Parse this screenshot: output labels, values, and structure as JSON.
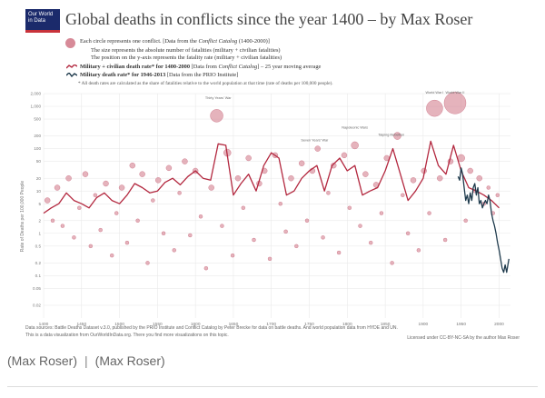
{
  "logo": {
    "line1": "Our World",
    "line2": "in Data"
  },
  "legend": {
    "circle_text": "Each circle represents one conflict. [Data from the",
    "circle_text_italic": "Conflict Catalog",
    "circle_text_end": "(1400-2000)]",
    "size_text": "The size represents the absolute number of fatalities (military + civilian fatalities)",
    "position_text": "The position on the y-axis represents the fatality rate (military + civilian fatalities)",
    "line1_bold": "Military + civilian death rate* for 1400-2000",
    "line1_rest": "[Data from",
    "line1_italic": "Conflict Catalog",
    "line1_end": "] – 25 year moving average",
    "line2_bold": "Military death rate* for 1946-2013",
    "line2_rest": "[Data from the PRIO Institute]",
    "note": "* All death rates are calculated as the share of fatalities relative to the world population at that time (rate of deaths per 100,000 people)."
  },
  "sources": {
    "line1": "Data sources: Battle Deaths Dataset v.3.0, published by the PRIO Institute and Conflict Catalog by Peter Brecke for data on battle deaths. And world population data from HYDE and UN.",
    "line2": "This is a data visualization from OurWorldInData.org. There you find more visualizations on this topic.",
    "license": "Licensed under CC-BY-NC-SA by the author Max Roser"
  },
  "caption": {
    "left": "(Max Roser)",
    "separator": "|",
    "right": "(Max Roser)"
  },
  "colors": {
    "circle": "#d78a98",
    "circle_stroke": "#c86a7e",
    "conflict_line": "#b3283f",
    "prio_line": "#1f3b4d",
    "grid": "#e6e6e6",
    "axis_text": "#777777",
    "logo_bg": "#1b2a6b",
    "logo_accent": "#c8323b"
  },
  "chart_data": {
    "type": "scatter",
    "title": "Global deaths in conflicts since the year 1400 – by Max Roser",
    "ylabel": "Rate of Deaths per 100,000 People",
    "xlim": [
      1400,
      2015
    ],
    "ylim": [
      0.01,
      2000
    ],
    "yscale": "log",
    "xticks": [
      1400,
      1450,
      1500,
      1550,
      1600,
      1650,
      1700,
      1750,
      1800,
      1850,
      1900,
      1950,
      2000
    ],
    "yticks": [
      {
        "value": 2000,
        "label": "2,000"
      },
      {
        "value": 1000,
        "label": "1,000"
      },
      {
        "value": 500,
        "label": "500"
      },
      {
        "value": 200,
        "label": "200"
      },
      {
        "value": 100,
        "label": "100"
      },
      {
        "value": 50,
        "label": "50"
      },
      {
        "value": 20,
        "label": "20"
      },
      {
        "value": 10,
        "label": "10"
      },
      {
        "value": 5,
        "label": "5"
      },
      {
        "value": 2,
        "label": "2"
      },
      {
        "value": 1,
        "label": "1"
      },
      {
        "value": 0.5,
        "label": "0.5"
      },
      {
        "value": 0.2,
        "label": "0.2"
      },
      {
        "value": 0.1,
        "label": "0.1"
      },
      {
        "value": 0.05,
        "label": "0.05"
      },
      {
        "value": 0.02,
        "label": "0.02"
      }
    ],
    "grid": true,
    "series": [
      {
        "name": "Military + civilian death rate* for 1400-2000",
        "type": "line",
        "points": [
          [
            1400,
            3
          ],
          [
            1410,
            4
          ],
          [
            1420,
            5
          ],
          [
            1430,
            9
          ],
          [
            1440,
            6
          ],
          [
            1450,
            5
          ],
          [
            1460,
            4
          ],
          [
            1470,
            7
          ],
          [
            1480,
            9
          ],
          [
            1490,
            6
          ],
          [
            1500,
            5
          ],
          [
            1510,
            8
          ],
          [
            1520,
            15
          ],
          [
            1530,
            12
          ],
          [
            1540,
            9
          ],
          [
            1550,
            10
          ],
          [
            1560,
            16
          ],
          [
            1570,
            20
          ],
          [
            1580,
            14
          ],
          [
            1590,
            22
          ],
          [
            1600,
            30
          ],
          [
            1610,
            20
          ],
          [
            1620,
            18
          ],
          [
            1630,
            130
          ],
          [
            1640,
            120
          ],
          [
            1650,
            8
          ],
          [
            1660,
            15
          ],
          [
            1670,
            25
          ],
          [
            1680,
            10
          ],
          [
            1690,
            40
          ],
          [
            1700,
            80
          ],
          [
            1710,
            60
          ],
          [
            1720,
            8
          ],
          [
            1730,
            10
          ],
          [
            1740,
            20
          ],
          [
            1750,
            30
          ],
          [
            1760,
            40
          ],
          [
            1770,
            10
          ],
          [
            1780,
            40
          ],
          [
            1790,
            60
          ],
          [
            1800,
            30
          ],
          [
            1810,
            40
          ],
          [
            1820,
            8
          ],
          [
            1830,
            10
          ],
          [
            1840,
            12
          ],
          [
            1850,
            30
          ],
          [
            1860,
            100
          ],
          [
            1870,
            25
          ],
          [
            1880,
            6
          ],
          [
            1890,
            10
          ],
          [
            1900,
            20
          ],
          [
            1910,
            150
          ],
          [
            1920,
            40
          ],
          [
            1930,
            25
          ],
          [
            1940,
            120
          ],
          [
            1950,
            30
          ],
          [
            1960,
            12
          ],
          [
            1970,
            10
          ],
          [
            1980,
            8
          ],
          [
            1990,
            6
          ],
          [
            2000,
            4
          ]
        ]
      },
      {
        "name": "Military death rate* for 1946-2013",
        "type": "line",
        "points": [
          [
            1946,
            22
          ],
          [
            1948,
            18
          ],
          [
            1950,
            35
          ],
          [
            1952,
            25
          ],
          [
            1954,
            12
          ],
          [
            1956,
            6
          ],
          [
            1958,
            8
          ],
          [
            1960,
            5
          ],
          [
            1962,
            9
          ],
          [
            1964,
            6
          ],
          [
            1966,
            12
          ],
          [
            1968,
            15
          ],
          [
            1970,
            8
          ],
          [
            1972,
            12
          ],
          [
            1974,
            5
          ],
          [
            1976,
            6
          ],
          [
            1978,
            4
          ],
          [
            1980,
            5
          ],
          [
            1982,
            6
          ],
          [
            1984,
            5
          ],
          [
            1986,
            8
          ],
          [
            1988,
            6
          ],
          [
            1990,
            3
          ],
          [
            1992,
            2
          ],
          [
            1994,
            1.5
          ],
          [
            1996,
            1
          ],
          [
            1998,
            0.6
          ],
          [
            2000,
            0.4
          ],
          [
            2002,
            0.25
          ],
          [
            2004,
            0.15
          ],
          [
            2006,
            0.12
          ],
          [
            2008,
            0.18
          ],
          [
            2010,
            0.12
          ],
          [
            2012,
            0.2
          ],
          [
            2013,
            0.25
          ]
        ]
      },
      {
        "name": "Conflicts",
        "type": "bubbles",
        "points": [
          [
            1405,
            6,
            3
          ],
          [
            1412,
            2,
            2
          ],
          [
            1418,
            12,
            3
          ],
          [
            1425,
            1.5,
            2
          ],
          [
            1433,
            20,
            3
          ],
          [
            1440,
            0.8,
            2
          ],
          [
            1447,
            4,
            2
          ],
          [
            1455,
            25,
            3
          ],
          [
            1462,
            0.5,
            2
          ],
          [
            1468,
            8,
            2
          ],
          [
            1475,
            1.2,
            2
          ],
          [
            1482,
            15,
            3
          ],
          [
            1490,
            0.3,
            2
          ],
          [
            1496,
            3,
            2
          ],
          [
            1503,
            12,
            3
          ],
          [
            1510,
            0.6,
            2
          ],
          [
            1517,
            40,
            3
          ],
          [
            1524,
            2,
            2
          ],
          [
            1530,
            25,
            3
          ],
          [
            1537,
            0.2,
            2
          ],
          [
            1544,
            6,
            2
          ],
          [
            1551,
            18,
            3
          ],
          [
            1558,
            1,
            2
          ],
          [
            1565,
            35,
            3
          ],
          [
            1572,
            0.4,
            2
          ],
          [
            1579,
            9,
            2
          ],
          [
            1586,
            50,
            3
          ],
          [
            1593,
            0.9,
            2
          ],
          [
            1600,
            30,
            3
          ],
          [
            1607,
            2.5,
            2
          ],
          [
            1614,
            0.15,
            2
          ],
          [
            1621,
            12,
            3
          ],
          [
            1628,
            600,
            7
          ],
          [
            1635,
            1.5,
            2
          ],
          [
            1642,
            80,
            4
          ],
          [
            1649,
            0.3,
            2
          ],
          [
            1656,
            20,
            3
          ],
          [
            1663,
            4,
            2
          ],
          [
            1670,
            60,
            3
          ],
          [
            1677,
            0.7,
            2
          ],
          [
            1684,
            15,
            3
          ],
          [
            1691,
            30,
            3
          ],
          [
            1698,
            0.25,
            2
          ],
          [
            1705,
            70,
            3
          ],
          [
            1712,
            5,
            2
          ],
          [
            1719,
            1.1,
            2
          ],
          [
            1726,
            20,
            3
          ],
          [
            1733,
            0.5,
            2
          ],
          [
            1740,
            45,
            3
          ],
          [
            1747,
            2,
            2
          ],
          [
            1754,
            30,
            3
          ],
          [
            1761,
            100,
            3
          ],
          [
            1768,
            0.8,
            2
          ],
          [
            1775,
            9,
            2
          ],
          [
            1782,
            40,
            3
          ],
          [
            1789,
            0.35,
            2
          ],
          [
            1796,
            70,
            3
          ],
          [
            1803,
            4,
            2
          ],
          [
            1810,
            120,
            4
          ],
          [
            1817,
            1.5,
            2
          ],
          [
            1824,
            25,
            3
          ],
          [
            1831,
            0.6,
            2
          ],
          [
            1838,
            14,
            3
          ],
          [
            1845,
            3,
            2
          ],
          [
            1852,
            60,
            3
          ],
          [
            1859,
            0.2,
            2
          ],
          [
            1866,
            200,
            4
          ],
          [
            1873,
            8,
            2
          ],
          [
            1880,
            1,
            2
          ],
          [
            1887,
            18,
            3
          ],
          [
            1894,
            0.4,
            2
          ],
          [
            1901,
            30,
            3
          ],
          [
            1908,
            3,
            2
          ],
          [
            1915,
            900,
            9
          ],
          [
            1922,
            20,
            3
          ],
          [
            1929,
            0.7,
            2
          ],
          [
            1936,
            50,
            3
          ],
          [
            1942,
            1200,
            12
          ],
          [
            1950,
            60,
            4
          ],
          [
            1956,
            2,
            2
          ],
          [
            1962,
            30,
            3
          ],
          [
            1968,
            10,
            2
          ],
          [
            1974,
            20,
            3
          ],
          [
            1980,
            5,
            2
          ],
          [
            1986,
            12,
            2
          ],
          [
            1992,
            3,
            2
          ],
          [
            1998,
            8,
            2
          ]
        ]
      }
    ],
    "annotations": [
      {
        "text": "Thirty Years' War",
        "x": 1630,
        "y": 1500
      },
      {
        "text": "World War I",
        "x": 1915,
        "y": 2000
      },
      {
        "text": "World War II",
        "x": 1942,
        "y": 2500
      },
      {
        "text": "Napoleonic Wars",
        "x": 1810,
        "y": 300
      },
      {
        "text": "Taiping Rebellion",
        "x": 1858,
        "y": 200
      },
      {
        "text": "Seven Years' War",
        "x": 1757,
        "y": 150
      }
    ]
  }
}
